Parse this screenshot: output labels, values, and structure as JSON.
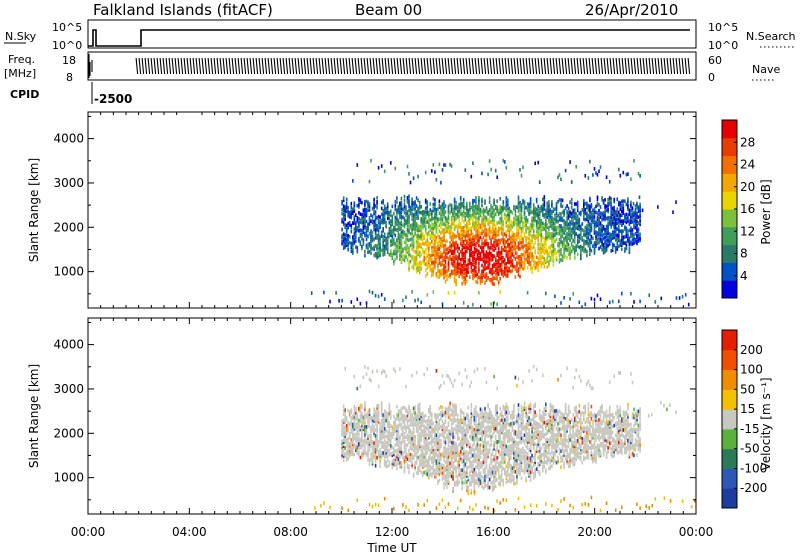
{
  "header": {
    "station": "Falkland Islands (fitACF)",
    "beam": "Beam 00",
    "date": "26/Apr/2010"
  },
  "strip_panels": {
    "nsky": {
      "label": "N.Sky",
      "ticks": [
        "10^5",
        "10^0"
      ]
    },
    "nsearch": {
      "label": "N.Search",
      "ticks": [
        "10^5",
        "10^0"
      ]
    },
    "freq": {
      "label_line1": "Freq.",
      "label_line2": "[MHz]",
      "ticks": [
        "18",
        "8"
      ]
    },
    "nave": {
      "label": "Nave",
      "ticks": [
        "60",
        "0"
      ]
    },
    "cpid": {
      "label": "CPID",
      "value": "-2500"
    }
  },
  "chart_data": [
    {
      "type": "heatmap",
      "name": "power",
      "ylabel": "Slant Range [km]",
      "xlabel": "",
      "xlim": [
        0,
        24
      ],
      "ylim": [
        180,
        4600
      ],
      "yticks": [
        1000,
        2000,
        3000,
        4000
      ],
      "colorbar": {
        "label": "Power [dB]",
        "ticks": [
          "28",
          "24",
          "20",
          "16",
          "12",
          "8",
          "4"
        ],
        "colors": [
          "#0000dc",
          "#0050c8",
          "#2a7a6a",
          "#3e9e5a",
          "#7ac23c",
          "#e8d400",
          "#f2a800",
          "#f07000",
          "#e83c00",
          "#e60000"
        ]
      }
    },
    {
      "type": "heatmap",
      "name": "velocity",
      "ylabel": "Slant Range [km]",
      "xlabel": "Time UT",
      "xlim": [
        0,
        24
      ],
      "ylim": [
        180,
        4600
      ],
      "yticks": [
        1000,
        2000,
        3000,
        4000
      ],
      "xticks": [
        "00:00",
        "04:00",
        "08:00",
        "12:00",
        "16:00",
        "20:00",
        "00:00"
      ],
      "colorbar": {
        "label": "Velocity [m s⁻¹]",
        "ticks": [
          "200",
          "100",
          "50",
          "15",
          "-15",
          "-50",
          "-100",
          "-200"
        ],
        "colors": [
          "#1e3ca0",
          "#2b58b8",
          "#2a7a5a",
          "#5ab23c",
          "#c8c8c0",
          "#f2c000",
          "#f08c00",
          "#f05000",
          "#e61e00"
        ]
      }
    }
  ]
}
